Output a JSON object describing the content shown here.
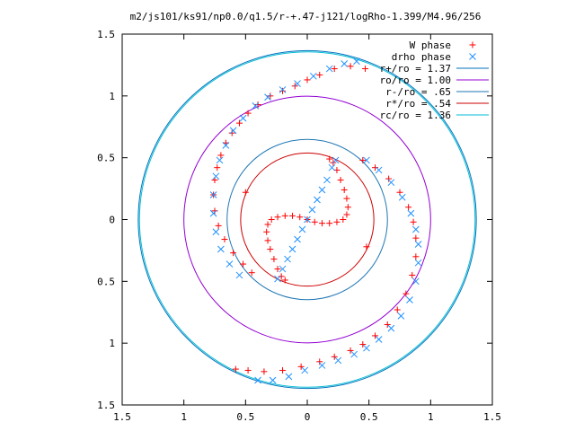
{
  "chart_data": {
    "type": "scatter",
    "title": "m2/js101/ks91/np0.0/q1.5/r-+.47-j121/logRho-1.399/M4.96/256",
    "xlabel": "",
    "ylabel": "",
    "xlim": [
      -1.5,
      1.5
    ],
    "ylim": [
      -1.5,
      1.5
    ],
    "x_ticks": [
      -1.5,
      -1,
      -0.5,
      0,
      0.5,
      1,
      1.5
    ],
    "y_ticks": [
      -1.5,
      -1,
      -0.5,
      0,
      0.5,
      1,
      1.5
    ],
    "x_tick_labels": [
      "1.5",
      "1",
      "0.5",
      "0",
      "0.5",
      "1",
      "1.5"
    ],
    "y_tick_labels": [
      "1.5",
      "1",
      "0.5",
      "0",
      "0.5",
      "1",
      "1.5"
    ],
    "grid": false,
    "legend_position": "top-right",
    "series": [
      {
        "name": "W phase",
        "marker": "plus",
        "color": "#ff0000",
        "points": [
          [
            0.0,
            0.0
          ],
          [
            -0.06,
            0.02
          ],
          [
            -0.12,
            0.03
          ],
          [
            -0.18,
            0.03
          ],
          [
            -0.24,
            0.02
          ],
          [
            -0.29,
            0.0
          ],
          [
            -0.32,
            -0.04
          ],
          [
            -0.33,
            -0.1
          ],
          [
            -0.32,
            -0.17
          ],
          [
            -0.3,
            -0.24
          ],
          [
            -0.27,
            -0.32
          ],
          [
            -0.24,
            -0.4
          ],
          [
            -0.21,
            -0.46
          ],
          [
            -0.18,
            -0.49
          ],
          [
            0.06,
            -0.02
          ],
          [
            0.12,
            -0.03
          ],
          [
            0.18,
            -0.03
          ],
          [
            0.24,
            -0.02
          ],
          [
            0.29,
            0.0
          ],
          [
            0.32,
            0.04
          ],
          [
            0.33,
            0.1
          ],
          [
            0.32,
            0.17
          ],
          [
            0.3,
            0.24
          ],
          [
            0.27,
            0.32
          ],
          [
            0.24,
            0.4
          ],
          [
            0.21,
            0.46
          ],
          [
            0.18,
            0.49
          ],
          [
            -0.5,
            0.22
          ],
          [
            0.48,
            -0.22
          ],
          [
            0.47,
            1.22
          ],
          [
            0.35,
            1.24
          ],
          [
            0.22,
            1.22
          ],
          [
            0.1,
            1.17
          ],
          [
            0.0,
            1.13
          ],
          [
            -0.1,
            1.08
          ],
          [
            -0.2,
            1.04
          ],
          [
            -0.3,
            1.0
          ],
          [
            -0.4,
            0.93
          ],
          [
            -0.48,
            0.86
          ],
          [
            -0.55,
            0.78
          ],
          [
            -0.61,
            0.7
          ],
          [
            -0.66,
            0.62
          ],
          [
            -0.7,
            0.52
          ],
          [
            -0.73,
            0.42
          ],
          [
            -0.75,
            0.32
          ],
          [
            -0.76,
            0.2
          ],
          [
            -0.75,
            0.07
          ],
          [
            -0.72,
            -0.05
          ],
          [
            -0.67,
            -0.16
          ],
          [
            -0.6,
            -0.27
          ],
          [
            -0.52,
            -0.36
          ],
          [
            -0.45,
            -0.43
          ],
          [
            0.45,
            0.48
          ],
          [
            0.55,
            0.42
          ],
          [
            0.66,
            0.33
          ],
          [
            0.75,
            0.22
          ],
          [
            0.82,
            0.1
          ],
          [
            0.86,
            -0.02
          ],
          [
            0.88,
            -0.15
          ],
          [
            0.88,
            -0.3
          ],
          [
            0.85,
            -0.45
          ],
          [
            0.8,
            -0.6
          ],
          [
            0.73,
            -0.73
          ],
          [
            0.65,
            -0.85
          ],
          [
            0.55,
            -0.94
          ],
          [
            0.45,
            -1.01
          ],
          [
            0.35,
            -1.06
          ],
          [
            0.22,
            -1.11
          ],
          [
            0.1,
            -1.15
          ],
          [
            -0.05,
            -1.19
          ],
          [
            -0.2,
            -1.22
          ],
          [
            -0.35,
            -1.23
          ],
          [
            -0.48,
            -1.22
          ],
          [
            -0.58,
            -1.21
          ]
        ]
      },
      {
        "name": "drho phase",
        "marker": "cross",
        "color": "#1e90ff",
        "points": [
          [
            -0.24,
            -0.48
          ],
          [
            -0.2,
            -0.4
          ],
          [
            -0.16,
            -0.32
          ],
          [
            -0.12,
            -0.24
          ],
          [
            -0.08,
            -0.16
          ],
          [
            -0.04,
            -0.08
          ],
          [
            0.0,
            0.0
          ],
          [
            0.04,
            0.08
          ],
          [
            0.08,
            0.16
          ],
          [
            0.12,
            0.24
          ],
          [
            0.16,
            0.32
          ],
          [
            0.2,
            0.42
          ],
          [
            0.23,
            0.48
          ],
          [
            -0.55,
            -0.45
          ],
          [
            -0.63,
            -0.36
          ],
          [
            -0.7,
            -0.24
          ],
          [
            -0.74,
            -0.1
          ],
          [
            -0.76,
            0.05
          ],
          [
            -0.76,
            0.2
          ],
          [
            -0.74,
            0.35
          ],
          [
            -0.71,
            0.48
          ],
          [
            -0.66,
            0.6
          ],
          [
            -0.6,
            0.72
          ],
          [
            -0.52,
            0.82
          ],
          [
            -0.42,
            0.92
          ],
          [
            -0.32,
            0.99
          ],
          [
            -0.2,
            1.05
          ],
          [
            -0.08,
            1.1
          ],
          [
            0.05,
            1.16
          ],
          [
            0.18,
            1.22
          ],
          [
            0.3,
            1.26
          ],
          [
            0.4,
            1.28
          ],
          [
            0.48,
            0.48
          ],
          [
            0.58,
            0.4
          ],
          [
            0.68,
            0.3
          ],
          [
            0.77,
            0.18
          ],
          [
            0.84,
            0.05
          ],
          [
            0.88,
            -0.08
          ],
          [
            0.9,
            -0.2
          ],
          [
            0.9,
            -0.35
          ],
          [
            0.88,
            -0.5
          ],
          [
            0.83,
            -0.65
          ],
          [
            0.76,
            -0.78
          ],
          [
            0.68,
            -0.88
          ],
          [
            0.58,
            -0.97
          ],
          [
            0.48,
            -1.04
          ],
          [
            0.38,
            -1.09
          ],
          [
            0.25,
            -1.14
          ],
          [
            0.12,
            -1.18
          ],
          [
            -0.02,
            -1.22
          ],
          [
            -0.15,
            -1.27
          ],
          [
            -0.28,
            -1.3
          ],
          [
            -0.4,
            -1.3
          ]
        ]
      },
      {
        "name": "r+/ro = 1.37",
        "type": "circle",
        "radius": 1.37,
        "color": "#0072bd"
      },
      {
        "name": "ro/ro = 1.00",
        "type": "circle",
        "radius": 1.0,
        "color": "#9400d3"
      },
      {
        "name": "r-/ro = .65",
        "type": "circle",
        "radius": 0.65,
        "color": "#1f77b4"
      },
      {
        "name": "r*/ro = .54",
        "type": "circle",
        "radius": 0.54,
        "color": "#cc0000"
      },
      {
        "name": "rc/ro = 1.36",
        "type": "circle",
        "radius": 1.36,
        "color": "#00bcd4"
      }
    ]
  }
}
